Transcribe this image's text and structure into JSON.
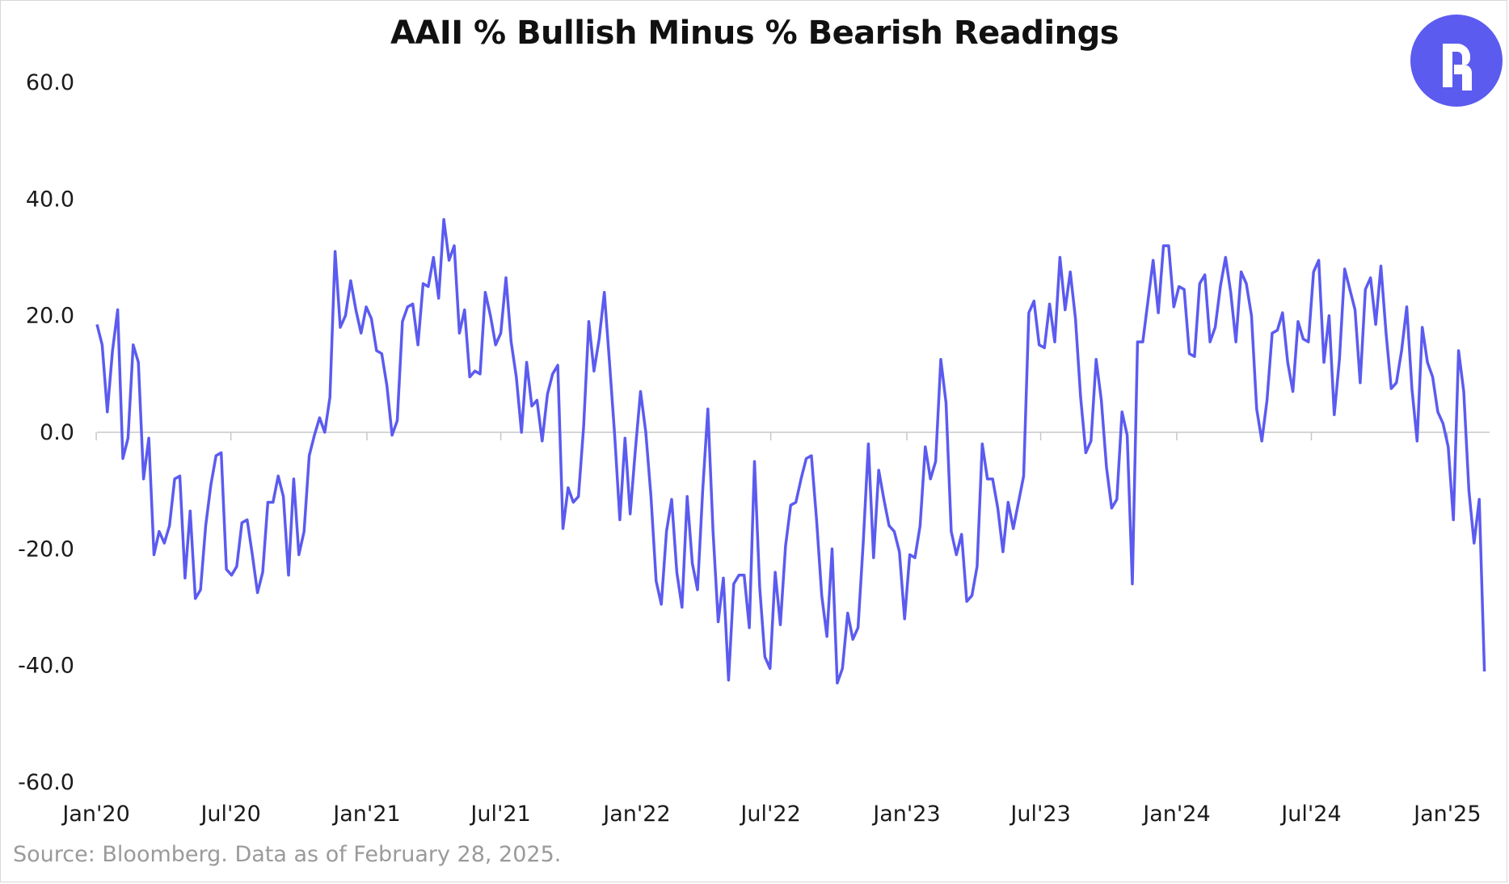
{
  "chart_data": {
    "type": "line",
    "title": "AAII % Bullish Minus % Bearish Readings",
    "xlabel": "",
    "ylabel": "",
    "ylim": [
      -60,
      60
    ],
    "y_ticks": [
      "60.0",
      "40.0",
      "20.0",
      "0.0",
      "-20.0",
      "-40.0",
      "-60.0"
    ],
    "x_ticks": [
      "Jan'20",
      "Jul'20",
      "Jan'21",
      "Jul'21",
      "Jan'22",
      "Jul'22",
      "Jan'23",
      "Jul'23",
      "Jan'24",
      "Jul'24",
      "Jan'25"
    ],
    "x_range": [
      "2020-01-02",
      "2025-02-27"
    ],
    "grid": false,
    "legend": "none",
    "line_color": "#5b5bf0",
    "series": [
      {
        "frequency": "weekly",
        "start": "2020-01-02",
        "values": [
          18.5,
          15,
          3.5,
          14,
          21,
          -4.5,
          -1,
          15,
          12,
          -8,
          -1,
          -21,
          -17,
          -19,
          -16,
          -8,
          -7.5,
          -25,
          -13.5,
          -28.5,
          -27,
          -16,
          -9,
          -4,
          -3.5,
          -23.5,
          -24.5,
          -23,
          -15.5,
          -15,
          -21,
          -27.5,
          -24,
          -12,
          -12,
          -7.5,
          -11,
          -24.5,
          -8,
          -21,
          -17,
          -4,
          -0.5,
          2.5,
          0,
          6,
          31,
          18,
          20,
          26,
          21,
          17,
          21.5,
          19.5,
          14,
          13.5,
          8,
          -0.5,
          2,
          19,
          21.5,
          22,
          15,
          25.5,
          25,
          30,
          23,
          36.5,
          29.5,
          32,
          17,
          21,
          9.5,
          10.5,
          10,
          24,
          20,
          15,
          17,
          26.5,
          15.5,
          9.5,
          0,
          12,
          4.5,
          5.5,
          -1.5,
          6.5,
          10,
          11.5,
          -16.5,
          -9.5,
          -12,
          -11,
          1,
          19,
          10.5,
          16,
          24,
          12,
          -0.5,
          -15,
          -1,
          -14,
          -3,
          7,
          0,
          -11,
          -25.5,
          -29.5,
          -17,
          -11.5,
          -24,
          -30,
          -11,
          -22.5,
          -27,
          -10,
          4,
          -17,
          -32.5,
          -25,
          -42.5,
          -26,
          -24.5,
          -24.5,
          -33.5,
          -5,
          -26.5,
          -38.5,
          -40.5,
          -24,
          -33,
          -19.5,
          -12.5,
          -12,
          -8,
          -4.5,
          -4,
          -15,
          -28,
          -35,
          -20,
          -43,
          -40.5,
          -31,
          -35.5,
          -33.5,
          -19,
          -2,
          -21.5,
          -6.5,
          -11.5,
          -16,
          -17,
          -20.5,
          -32,
          -21,
          -21.5,
          -16,
          -2.5,
          -8,
          -5,
          12.5,
          5,
          -17,
          -21,
          -17.5,
          -29,
          -28,
          -23,
          -2,
          -8,
          -8,
          -13,
          -20.5,
          -12,
          -16.5,
          -12,
          -7.5,
          20.5,
          22.5,
          15,
          14.5,
          22,
          15.5,
          30,
          21,
          27.5,
          19.5,
          6,
          -3.5,
          -1.5,
          12.5,
          5.5,
          -6,
          -13,
          -11.5,
          3.5,
          -0.5,
          -26,
          15.5,
          15.5,
          22.5,
          29.5,
          20.5,
          32,
          32,
          21.5,
          25,
          24.5,
          13.5,
          13,
          25.5,
          27,
          15.5,
          18,
          25,
          30,
          24,
          15.5,
          27.5,
          25.5,
          20,
          4,
          -1.5,
          5.5,
          17,
          17.5,
          20.5,
          12,
          7,
          19,
          16,
          15.5,
          27.5,
          29.5,
          12,
          20,
          3,
          12.5,
          28,
          24.5,
          21,
          8.5,
          24.5,
          26.5,
          18.5,
          28.5,
          17,
          7.5,
          8.5,
          14,
          21.5,
          7.5,
          -1.5,
          18,
          12,
          9.5,
          3.5,
          1.5,
          -2.5,
          -15,
          14,
          7,
          -10,
          -19,
          -11.5,
          -41
        ]
      }
    ]
  },
  "source_note": "Source: Bloomberg. Data as of February 28, 2025.",
  "logo": {
    "icon": "r-brand-logo",
    "color": "#5b5bf0"
  }
}
